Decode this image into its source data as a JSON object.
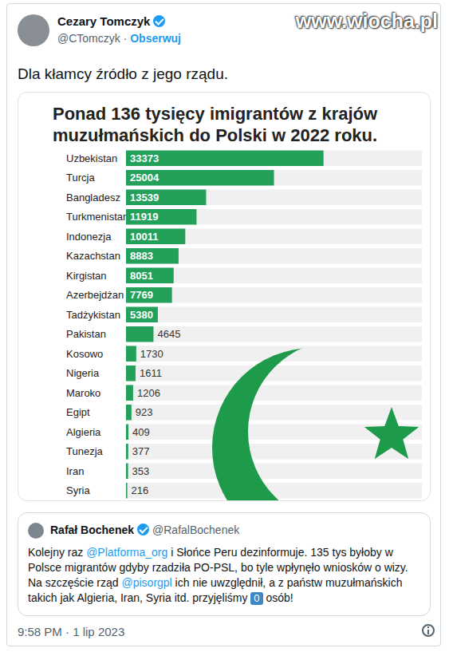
{
  "tweet": {
    "author": {
      "name": "Cezary Tomczyk",
      "verified": true,
      "handle": "@CTomczyk",
      "separator": "·",
      "follow": "Obserwuj"
    },
    "watermark": "www.wiocha.pl",
    "text": "Dla kłamcy źródło z jego rządu.",
    "quoted": {
      "name": "Rafał Bochenek",
      "verified": true,
      "handle": "@RafalBochenek",
      "text_segments": [
        {
          "text": "Kolejny raz ",
          "style": "plain"
        },
        {
          "text": "@Platforma_org",
          "style": "mention"
        },
        {
          "text": " i Słońce Peru dezinformuje. 135 tys byłoby w Polsce migrantów gdyby rzadziła PO-PSL, bo tyle wpłynęło wniosków o wizy. Na szczęście rząd ",
          "style": "plain"
        },
        {
          "text": "@pisorgpl",
          "style": "mention"
        },
        {
          "text": " ich nie uwzględnił, a z państw muzułmańskich takich jak Algieria, Iran, Syria itd. przyjęliśmy ",
          "style": "plain"
        },
        {
          "text": "0",
          "style": "keycap"
        },
        {
          "text": " osób!",
          "style": "plain"
        }
      ]
    },
    "timestamp": "9:58 PM · 1 lip 2023"
  },
  "chart_data": {
    "type": "bar",
    "orientation": "horizontal",
    "title": "Ponad 136 tysięcy imigrantów z krajów muzułmańskich do Polski w 2022 roku.",
    "categories": [
      "Uzbekistan",
      "Turcja",
      "Bangladesz",
      "Turkmenistan",
      "Indonezja",
      "Kazachstan",
      "Kirgistan",
      "Azerbejdżan",
      "Tadżykistan",
      "Pakistan",
      "Kosowo",
      "Nigeria",
      "Maroko",
      "Egipt",
      "Algieria",
      "Tunezja",
      "Iran",
      "Syria"
    ],
    "values": [
      33373,
      25004,
      13539,
      11919,
      10011,
      8883,
      8051,
      7769,
      5380,
      4645,
      1730,
      1611,
      1206,
      923,
      409,
      377,
      353,
      216
    ],
    "color": "#23a15b",
    "xlim": [
      0,
      50000
    ],
    "tick_labels": false,
    "grid": false,
    "data_labels": true
  }
}
